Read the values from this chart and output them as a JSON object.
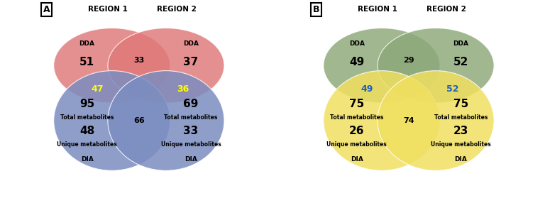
{
  "panel_A": {
    "title_label": "A",
    "region1_label": "REGION 1",
    "region2_label": "REGION 2",
    "dda_left_label": "DDA",
    "dda_left_value": "51",
    "dda_right_label": "DDA",
    "dda_right_value": "37",
    "dda_overlap_value": "33",
    "dda_overlap_color": "black",
    "dia_left_label": "DIA",
    "dia_left_total": "95",
    "dia_left_unique": "48",
    "dia_right_label": "DIA",
    "dia_right_total": "69",
    "dia_right_unique": "33",
    "dia_overlap_value": "66",
    "dia_overlap_color": "black",
    "cross_overlap_left_value": "47",
    "cross_overlap_left_color": "yellow",
    "cross_overlap_right_value": "36",
    "cross_overlap_right_color": "yellow",
    "dda_color": "#E07878",
    "dda_alpha": 0.82,
    "dia_color": "#7B8DC0",
    "dia_alpha": 0.85
  },
  "panel_B": {
    "title_label": "B",
    "region1_label": "REGION 1",
    "region2_label": "REGION 2",
    "dda_left_label": "DDA",
    "dda_left_value": "49",
    "dda_right_label": "DDA",
    "dda_right_value": "52",
    "dda_overlap_value": "29",
    "dda_overlap_color": "black",
    "dia_left_label": "DIA",
    "dia_left_total": "75",
    "dia_left_unique": "26",
    "dia_right_label": "DIA",
    "dia_right_total": "75",
    "dia_right_unique": "23",
    "dia_overlap_value": "74",
    "dia_overlap_color": "black",
    "cross_overlap_left_value": "49",
    "cross_overlap_left_color": "#1E5FBE",
    "cross_overlap_right_value": "52",
    "cross_overlap_right_color": "#1E5FBE",
    "dda_color": "#8CA878",
    "dda_alpha": 0.82,
    "dia_color": "#F0E060",
    "dia_alpha": 0.85
  }
}
